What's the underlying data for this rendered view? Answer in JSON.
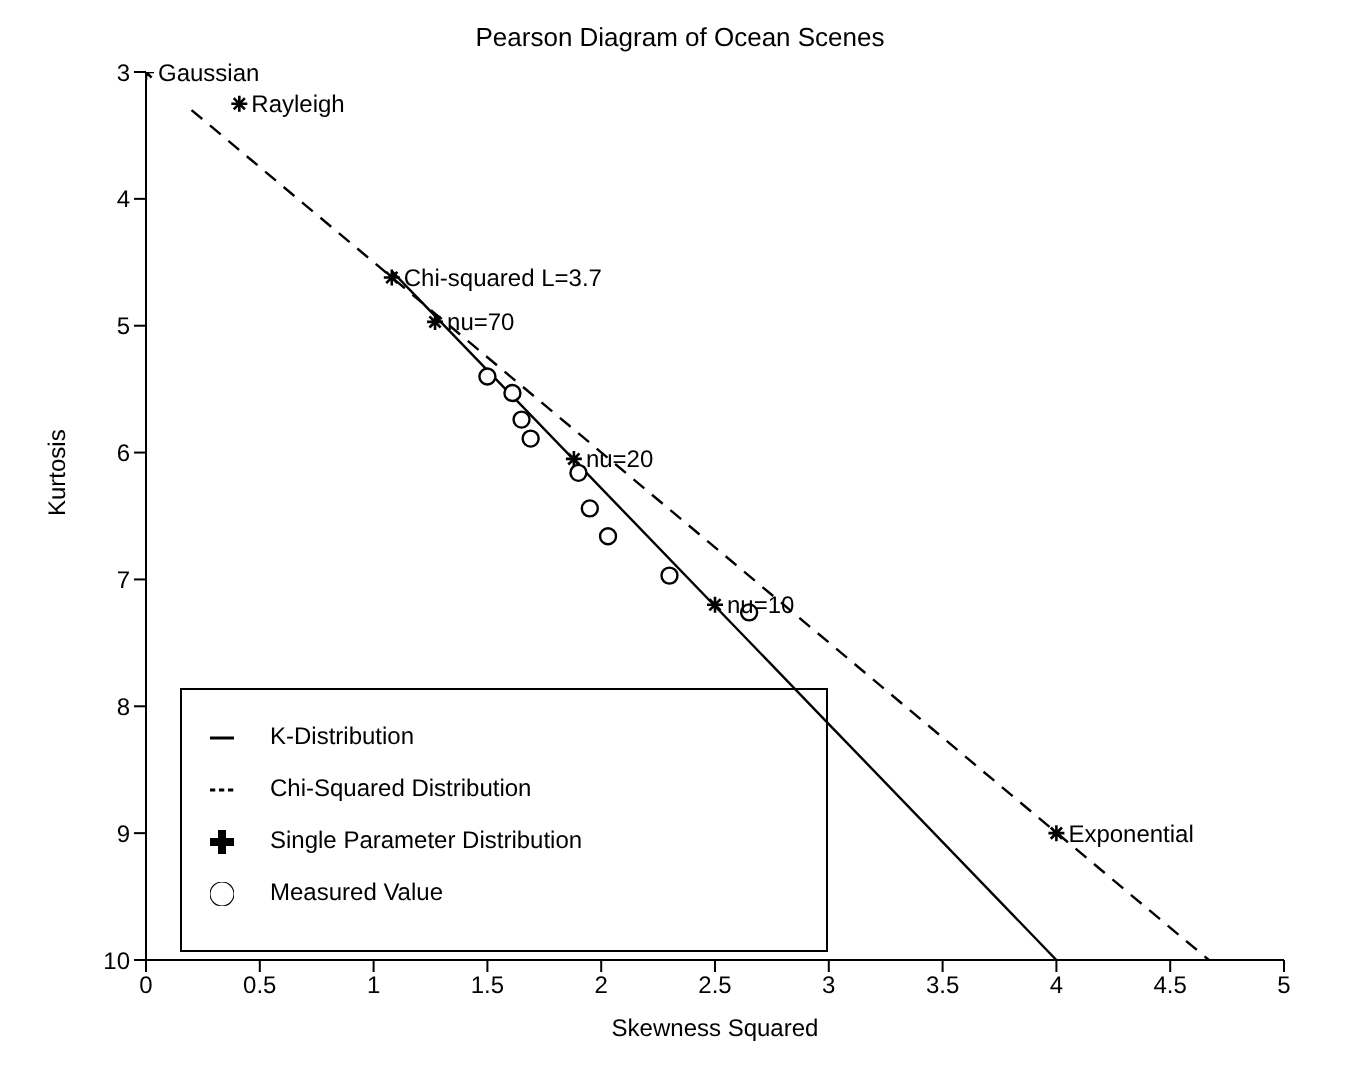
{
  "chart_data": {
    "type": "scatter",
    "title": "Pearson Diagram of Ocean Scenes",
    "xlabel": "Skewness Squared",
    "ylabel": "Kurtosis",
    "xlim": [
      0,
      5
    ],
    "xticks": [
      0,
      0.5,
      1,
      1.5,
      2,
      2.5,
      3,
      3.5,
      4,
      4.5,
      5
    ],
    "ylim": [
      10,
      3
    ],
    "yticks": [
      3,
      4,
      5,
      6,
      7,
      8,
      9,
      10
    ],
    "legend": "bottom left",
    "series": [
      {
        "name": "K-Distribution",
        "type": "line",
        "color": "#000000",
        "line_style": "solid",
        "x": [
          1.08,
          3,
          4
        ],
        "values": [
          4.57,
          8.14,
          10
        ]
      },
      {
        "name": "Chi-Squared Distribution",
        "type": "line",
        "color": "#000000",
        "line_style": "dashed",
        "x": [
          0.2,
          4.67
        ],
        "values": [
          3.3,
          10
        ]
      },
      {
        "name": "Single Parameter Distribution",
        "color": "#000000",
        "marker": "cross",
        "x": [
          0,
          0.41,
          1.08,
          1.27,
          1.88,
          2.5,
          4
        ],
        "values": [
          3,
          3.25,
          4.62,
          4.97,
          6.05,
          7.2,
          9
        ]
      },
      {
        "name": "Measured Value",
        "color": "#000000",
        "marker": "circle",
        "x": [
          1.5,
          1.61,
          1.65,
          1.69,
          1.9,
          1.95,
          2.03,
          2.3,
          2.65
        ],
        "values": [
          5.4,
          5.53,
          5.74,
          5.89,
          6.16,
          6.44,
          6.66,
          6.97,
          7.26
        ]
      }
    ],
    "annotations": [
      {
        "text": "Gaussian",
        "x": 0,
        "y": 3
      },
      {
        "text": "Rayleigh",
        "x": 0.41,
        "y": 3.25
      },
      {
        "text": "Chi-squared L=3.7",
        "x": 1.08,
        "y": 4.62
      },
      {
        "text": "nu=70",
        "x": 1.27,
        "y": 4.97
      },
      {
        "text": "nu=20",
        "x": 1.88,
        "y": 6.05
      },
      {
        "text": "nu=10",
        "x": 2.5,
        "y": 7.2
      },
      {
        "text": "Exponential",
        "x": 4,
        "y": 9
      }
    ]
  }
}
